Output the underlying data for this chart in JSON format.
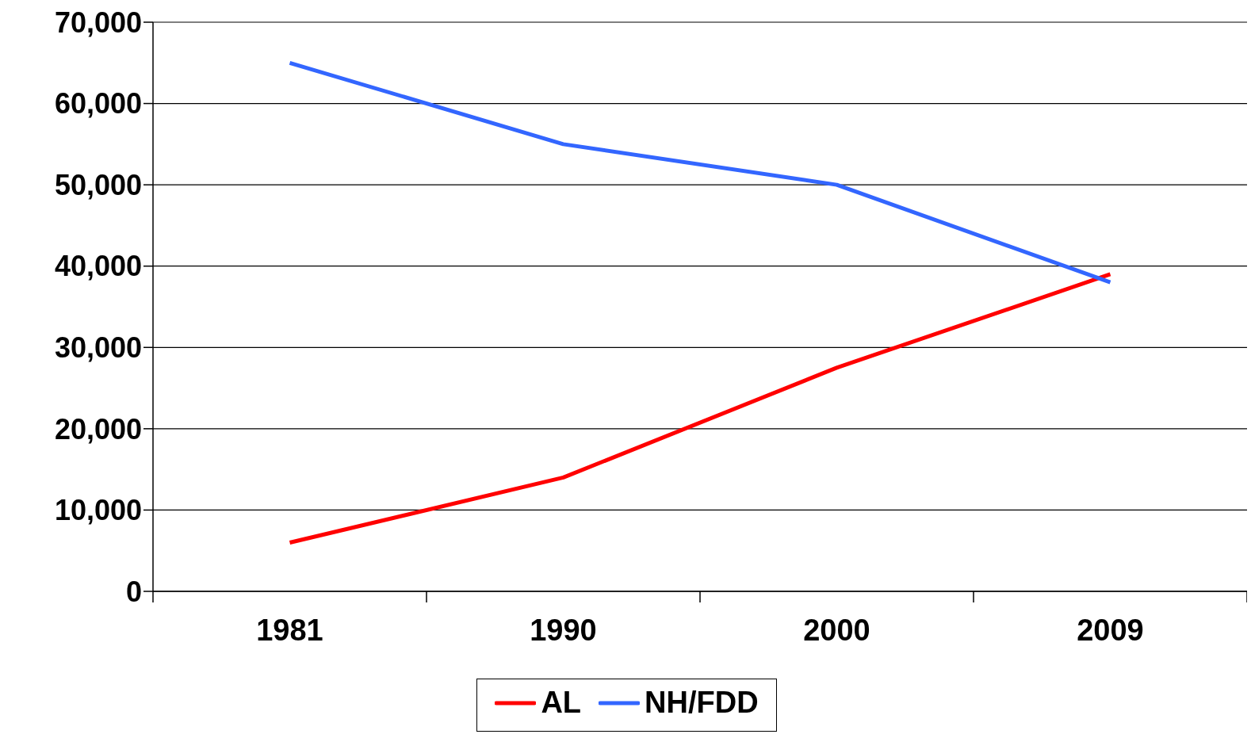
{
  "chart_data": {
    "type": "line",
    "categories": [
      "1981",
      "1990",
      "2000",
      "2009"
    ],
    "series": [
      {
        "name": "AL",
        "color": "#ff0000",
        "values": [
          6000,
          14000,
          27500,
          39000
        ]
      },
      {
        "name": "NH/FDD",
        "color": "#3366ff",
        "values": [
          65000,
          55000,
          50000,
          38000
        ]
      }
    ],
    "ylim": [
      0,
      70000
    ],
    "yticks": [
      {
        "value": 0,
        "label": "0"
      },
      {
        "value": 10000,
        "label": "10,000"
      },
      {
        "value": 20000,
        "label": "20,000"
      },
      {
        "value": 30000,
        "label": "30,000"
      },
      {
        "value": 40000,
        "label": "40,000"
      },
      {
        "value": 50000,
        "label": "50,000"
      },
      {
        "value": 60000,
        "label": "60,000"
      },
      {
        "value": 70000,
        "label": "70,000"
      }
    ],
    "grid": "y",
    "legend": "bottom",
    "marker": "none",
    "line_style": "solid"
  }
}
